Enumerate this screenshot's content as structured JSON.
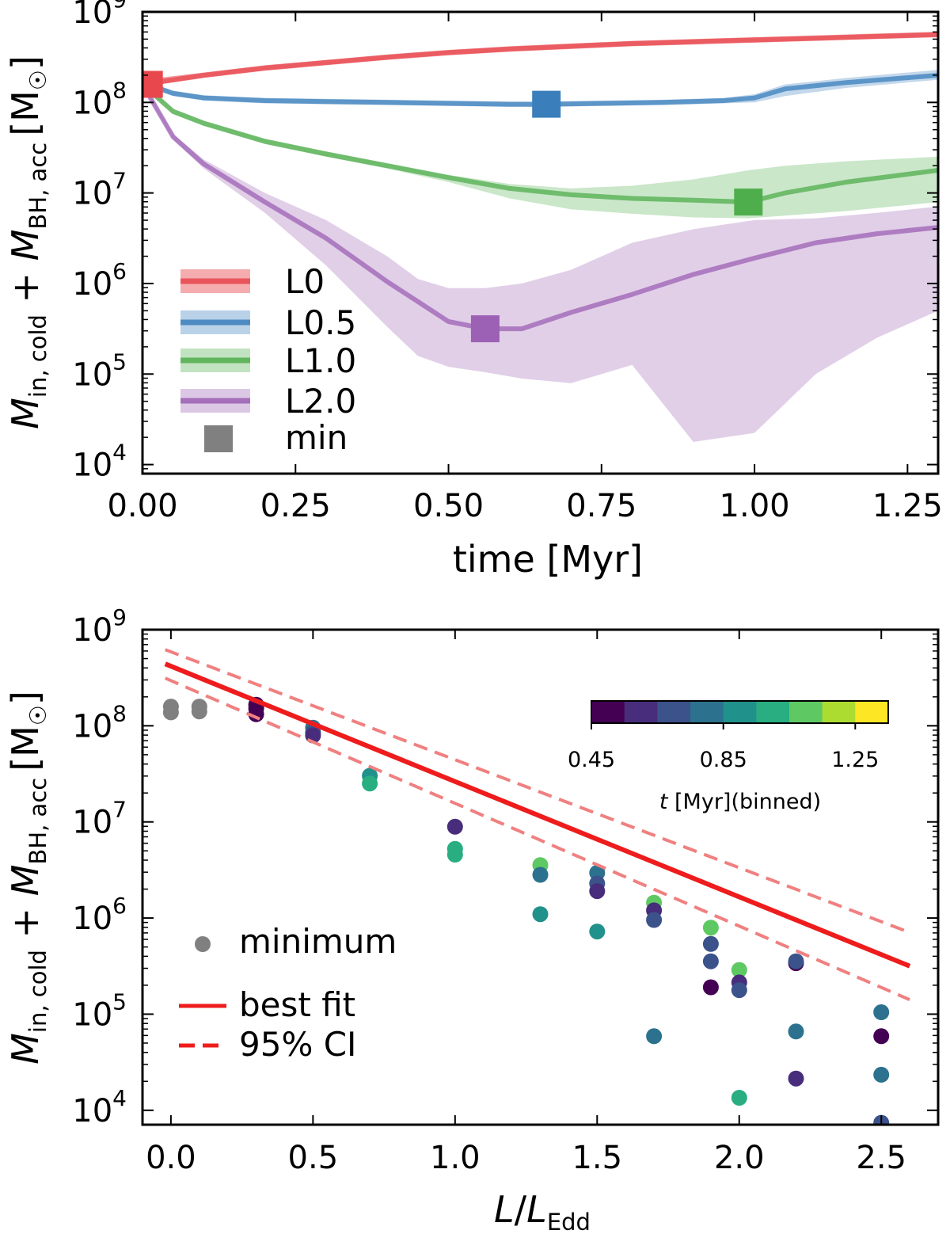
{
  "chart_data": [
    {
      "type": "line",
      "xlabel": "time [Myr]",
      "ylabel": "M_in,cold + M_BH,acc [M☉]",
      "ylabel_parts": {
        "M": "M",
        "in_sub": "in, cold",
        "plus": " + ",
        "bh_sub": "BH, acc",
        "unit": "[M",
        "sun": "☉",
        "close": "]"
      },
      "xlim": [
        0,
        1.3
      ],
      "ylim_log10": [
        3.9,
        9
      ],
      "xticks": [
        "0.00",
        "0.25",
        "0.50",
        "0.75",
        "1.00",
        "1.25"
      ],
      "xtick_values": [
        0,
        0.25,
        0.5,
        0.75,
        1.0,
        1.25
      ],
      "yticks_exp": [
        "4",
        "5",
        "6",
        "7",
        "8",
        "9"
      ],
      "ytick_base": "10",
      "legend": {
        "position": "lower-left",
        "entries": [
          "L0",
          "L0.5",
          "L1.0",
          "L2.0"
        ],
        "marker_label": "min"
      },
      "series": [
        {
          "name": "L0",
          "color": "#e8474e",
          "t": [
            0,
            0.1,
            0.2,
            0.3,
            0.4,
            0.5,
            0.6,
            0.7,
            0.8,
            0.9,
            1.0,
            1.1,
            1.2,
            1.3
          ],
          "log_mid": [
            8.2,
            8.3,
            8.38,
            8.44,
            8.5,
            8.55,
            8.59,
            8.62,
            8.65,
            8.67,
            8.69,
            8.71,
            8.73,
            8.75
          ],
          "log_lo": [
            8.17,
            8.27,
            8.35,
            8.41,
            8.47,
            8.52,
            8.56,
            8.59,
            8.62,
            8.64,
            8.66,
            8.68,
            8.7,
            8.72
          ],
          "log_hi": [
            8.25,
            8.33,
            8.41,
            8.47,
            8.53,
            8.58,
            8.62,
            8.65,
            8.68,
            8.7,
            8.72,
            8.74,
            8.76,
            8.78
          ],
          "min_t": 0.01,
          "min_log": 8.2
        },
        {
          "name": "L0.5",
          "color": "#3a7fbc",
          "t": [
            0,
            0.05,
            0.1,
            0.2,
            0.3,
            0.4,
            0.5,
            0.6,
            0.66,
            0.75,
            0.85,
            0.95,
            1.0,
            1.05,
            1.15,
            1.3
          ],
          "log_mid": [
            8.22,
            8.1,
            8.05,
            8.02,
            8.01,
            8.0,
            7.99,
            7.98,
            7.98,
            7.99,
            8.0,
            8.02,
            8.05,
            8.15,
            8.22,
            8.3
          ],
          "log_lo": [
            8.19,
            8.07,
            8.02,
            7.99,
            7.98,
            7.97,
            7.96,
            7.95,
            7.95,
            7.96,
            7.97,
            7.99,
            8.0,
            8.07,
            8.16,
            8.25
          ],
          "log_hi": [
            8.25,
            8.13,
            8.08,
            8.05,
            8.04,
            8.03,
            8.02,
            8.01,
            8.01,
            8.02,
            8.03,
            8.05,
            8.09,
            8.2,
            8.27,
            8.36
          ],
          "min_t": 0.66,
          "min_log": 7.98
        },
        {
          "name": "L1.0",
          "color": "#4fae4c",
          "t": [
            0,
            0.05,
            0.1,
            0.2,
            0.3,
            0.4,
            0.5,
            0.6,
            0.7,
            0.8,
            0.9,
            0.99,
            1.05,
            1.15,
            1.3
          ],
          "log_mid": [
            8.2,
            7.9,
            7.77,
            7.57,
            7.43,
            7.3,
            7.17,
            7.05,
            6.98,
            6.94,
            6.92,
            6.9,
            7.0,
            7.12,
            7.25
          ],
          "log_lo": [
            8.17,
            7.87,
            7.74,
            7.54,
            7.4,
            7.27,
            7.12,
            6.94,
            6.82,
            6.77,
            6.73,
            6.72,
            6.75,
            6.8,
            6.9
          ],
          "log_hi": [
            8.23,
            7.93,
            7.8,
            7.6,
            7.46,
            7.33,
            7.2,
            7.1,
            7.05,
            7.08,
            7.15,
            7.25,
            7.3,
            7.35,
            7.4
          ],
          "min_t": 0.99,
          "min_log": 6.9
        },
        {
          "name": "L2.0",
          "color": "#9c60b4",
          "t": [
            0,
            0.05,
            0.1,
            0.2,
            0.3,
            0.4,
            0.45,
            0.5,
            0.56,
            0.62,
            0.7,
            0.8,
            0.9,
            1.0,
            1.1,
            1.2,
            1.3
          ],
          "log_mid": [
            8.2,
            7.62,
            7.32,
            6.9,
            6.5,
            6.02,
            5.8,
            5.58,
            5.5,
            5.5,
            5.68,
            5.88,
            6.1,
            6.28,
            6.45,
            6.55,
            6.62
          ],
          "log_lo": [
            8.17,
            7.59,
            7.27,
            6.78,
            6.2,
            5.52,
            5.2,
            5.08,
            5.02,
            4.95,
            4.9,
            5.1,
            4.25,
            4.35,
            5.0,
            5.4,
            5.7
          ],
          "log_hi": [
            8.23,
            7.65,
            7.37,
            7.0,
            6.7,
            6.3,
            6.05,
            5.95,
            5.95,
            6.0,
            6.15,
            6.45,
            6.6,
            6.7,
            6.72,
            6.78,
            6.85
          ],
          "min_t": 0.56,
          "min_log": 5.5
        }
      ]
    },
    {
      "type": "scatter",
      "xlabel": "L/L_Edd",
      "xlabel_parts": {
        "L1": "L",
        "slash": "/",
        "L2": "L",
        "sub": "Edd"
      },
      "ylabel": "M_in,cold + M_BH,acc [M☉]",
      "xlim": [
        -0.1,
        2.7
      ],
      "ylim_log10": [
        3.85,
        9
      ],
      "xticks": [
        "0.0",
        "0.5",
        "1.0",
        "1.5",
        "2.0",
        "2.5"
      ],
      "xtick_values": [
        0,
        0.5,
        1.0,
        1.5,
        2.0,
        2.5
      ],
      "yticks_exp": [
        "4",
        "5",
        "6",
        "7",
        "8",
        "9"
      ],
      "ytick_base": "10",
      "legend": {
        "position": "lower-left",
        "entries": [
          "minimum",
          "best fit",
          "95% CI"
        ]
      },
      "colorbar": {
        "label": "t [Myr](binned)",
        "label_t": "t",
        "label_rest": " [Myr](binned)",
        "ticks": [
          "0.45",
          "0.85",
          "1.25"
        ],
        "range": [
          0.45,
          1.35
        ],
        "colors": [
          "#440154",
          "#472d7b",
          "#3b528b",
          "#2c728e",
          "#21918c",
          "#28ae80",
          "#5ec962",
          "#addc30",
          "#fde725"
        ]
      },
      "fit": {
        "intercept_log": 8.62,
        "slope_log": -1.2,
        "ci_half_at0": 0.15,
        "ci_half_at2_6": 0.35
      },
      "minimum_points": [
        {
          "x": 0.0,
          "log_y": 8.2
        },
        {
          "x": 0.0,
          "log_y": 8.14
        },
        {
          "x": 0.1,
          "log_y": 8.2
        },
        {
          "x": 0.1,
          "log_y": 8.15
        }
      ],
      "points": [
        {
          "x": 0.3,
          "log_y": 8.18,
          "t": 0.5
        },
        {
          "x": 0.3,
          "log_y": 8.12,
          "t": 0.5
        },
        {
          "x": 0.3,
          "log_y": 8.22,
          "t": 0.45
        },
        {
          "x": 0.5,
          "log_y": 7.98,
          "t": 0.8
        },
        {
          "x": 0.5,
          "log_y": 7.93,
          "t": 0.75
        },
        {
          "x": 0.5,
          "log_y": 7.9,
          "t": 0.55
        },
        {
          "x": 0.7,
          "log_y": 7.48,
          "t": 0.9
        },
        {
          "x": 0.7,
          "log_y": 7.4,
          "t": 1.0
        },
        {
          "x": 1.0,
          "log_y": 6.95,
          "t": 0.6
        },
        {
          "x": 1.0,
          "log_y": 6.72,
          "t": 1.0
        },
        {
          "x": 1.0,
          "log_y": 6.66,
          "t": 1.0
        },
        {
          "x": 1.3,
          "log_y": 6.55,
          "t": 1.05
        },
        {
          "x": 1.3,
          "log_y": 6.45,
          "t": 0.8
        },
        {
          "x": 1.3,
          "log_y": 6.04,
          "t": 0.9
        },
        {
          "x": 1.5,
          "log_y": 6.47,
          "t": 0.8
        },
        {
          "x": 1.5,
          "log_y": 6.36,
          "t": 0.65
        },
        {
          "x": 1.5,
          "log_y": 6.28,
          "t": 0.6
        },
        {
          "x": 1.5,
          "log_y": 5.86,
          "t": 0.95
        },
        {
          "x": 1.7,
          "log_y": 6.16,
          "t": 1.05
        },
        {
          "x": 1.7,
          "log_y": 6.08,
          "t": 0.6
        },
        {
          "x": 1.7,
          "log_y": 5.98,
          "t": 0.65
        },
        {
          "x": 1.7,
          "log_y": 4.77,
          "t": 0.85
        },
        {
          "x": 1.9,
          "log_y": 5.9,
          "t": 1.05
        },
        {
          "x": 1.9,
          "log_y": 5.73,
          "t": 0.65
        },
        {
          "x": 1.9,
          "log_y": 5.55,
          "t": 0.7
        },
        {
          "x": 1.9,
          "log_y": 5.28,
          "t": 0.5
        },
        {
          "x": 2.0,
          "log_y": 5.46,
          "t": 1.05
        },
        {
          "x": 2.0,
          "log_y": 5.33,
          "t": 0.6
        },
        {
          "x": 2.0,
          "log_y": 5.25,
          "t": 0.7
        },
        {
          "x": 2.0,
          "log_y": 4.13,
          "t": 1.0
        },
        {
          "x": 2.2,
          "log_y": 5.53,
          "t": 0.5
        },
        {
          "x": 2.2,
          "log_y": 5.55,
          "t": 0.7
        },
        {
          "x": 2.2,
          "log_y": 4.82,
          "t": 0.8
        },
        {
          "x": 2.2,
          "log_y": 4.33,
          "t": 0.55
        },
        {
          "x": 2.5,
          "log_y": 5.02,
          "t": 0.8
        },
        {
          "x": 2.5,
          "log_y": 4.77,
          "t": 0.5
        },
        {
          "x": 2.5,
          "log_y": 4.37,
          "t": 0.8
        },
        {
          "x": 2.5,
          "log_y": 3.87,
          "t": 0.7
        }
      ]
    }
  ]
}
